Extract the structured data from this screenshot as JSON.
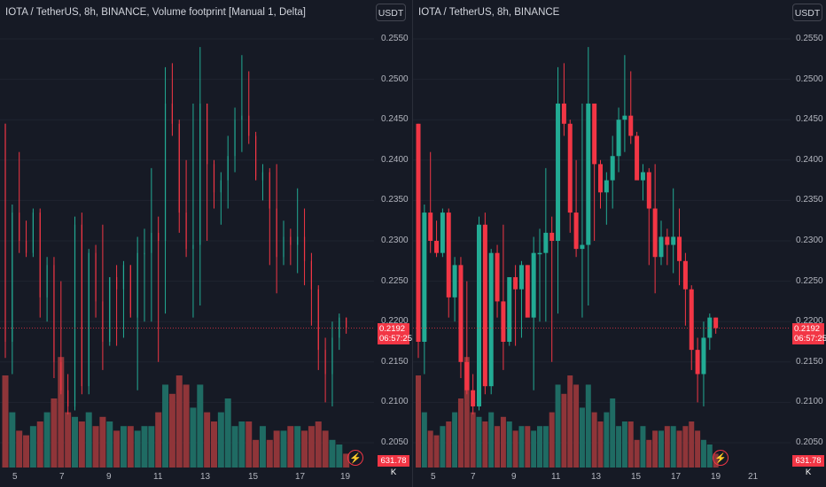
{
  "colors": {
    "background": "#161a25",
    "up": "#22ab94",
    "down": "#f23645",
    "up_volume": "#1f6b63",
    "down_volume": "#8f3539",
    "grid": "#1f2430",
    "last_price_line": "#f23645"
  },
  "left_pane": {
    "legend": "IOTA / TetherUS, 8h, BINANCE, Volume footprint [Manual 1, Delta]",
    "currency_button": "USDT",
    "last_price": "0.2192",
    "countdown": "06:57:25",
    "volume_tag": "631.78 K",
    "flash_icon": "lightning-icon"
  },
  "right_pane": {
    "legend": "IOTA / TetherUS, 8h, BINANCE",
    "currency_button": "USDT",
    "last_price": "0.2192",
    "countdown": "06:57:25",
    "volume_tag": "631.78 K",
    "flash_icon": "lightning-icon"
  },
  "price_axis": [
    "0.2550",
    "0.2500",
    "0.2450",
    "0.2400",
    "0.2350",
    "0.2300",
    "0.2250",
    "0.2200",
    "0.2150",
    "0.2100",
    "0.2050"
  ],
  "left_dates": [
    "5",
    "7",
    "9",
    "11",
    "13",
    "15",
    "17",
    "19"
  ],
  "right_dates": [
    "5",
    "7",
    "9",
    "11",
    "13",
    "15",
    "17",
    "19",
    "21"
  ],
  "chart_data": {
    "type": "candlestick",
    "symbol": "IOTA / TetherUS",
    "interval": "8h",
    "exchange": "BINANCE",
    "ylim": [
      0.2025,
      0.256
    ],
    "candles": [
      {
        "o": 0.2445,
        "h": 0.2445,
        "l": 0.2155,
        "c": 0.2175
      },
      {
        "o": 0.2175,
        "h": 0.2345,
        "l": 0.2135,
        "c": 0.2335
      },
      {
        "o": 0.2335,
        "h": 0.241,
        "l": 0.2285,
        "c": 0.23
      },
      {
        "o": 0.23,
        "h": 0.2325,
        "l": 0.228,
        "c": 0.2285
      },
      {
        "o": 0.2285,
        "h": 0.234,
        "l": 0.228,
        "c": 0.2335
      },
      {
        "o": 0.2335,
        "h": 0.234,
        "l": 0.2205,
        "c": 0.223
      },
      {
        "o": 0.223,
        "h": 0.228,
        "l": 0.22,
        "c": 0.227
      },
      {
        "o": 0.227,
        "h": 0.228,
        "l": 0.213,
        "c": 0.215
      },
      {
        "o": 0.215,
        "h": 0.225,
        "l": 0.211,
        "c": 0.2115
      },
      {
        "o": 0.2115,
        "h": 0.2135,
        "l": 0.2085,
        "c": 0.2095
      },
      {
        "o": 0.2095,
        "h": 0.233,
        "l": 0.209,
        "c": 0.232
      },
      {
        "o": 0.232,
        "h": 0.2335,
        "l": 0.211,
        "c": 0.212
      },
      {
        "o": 0.212,
        "h": 0.229,
        "l": 0.211,
        "c": 0.2285
      },
      {
        "o": 0.2285,
        "h": 0.2295,
        "l": 0.2205,
        "c": 0.2225
      },
      {
        "o": 0.2225,
        "h": 0.232,
        "l": 0.214,
        "c": 0.2175
      },
      {
        "o": 0.2175,
        "h": 0.2255,
        "l": 0.217,
        "c": 0.2255
      },
      {
        "o": 0.2255,
        "h": 0.227,
        "l": 0.217,
        "c": 0.224
      },
      {
        "o": 0.224,
        "h": 0.2275,
        "l": 0.218,
        "c": 0.227
      },
      {
        "o": 0.227,
        "h": 0.227,
        "l": 0.221,
        "c": 0.2205
      },
      {
        "o": 0.2205,
        "h": 0.2305,
        "l": 0.2115,
        "c": 0.2285
      },
      {
        "o": 0.2285,
        "h": 0.2315,
        "l": 0.22,
        "c": 0.2285
      },
      {
        "o": 0.2285,
        "h": 0.239,
        "l": 0.22,
        "c": 0.231
      },
      {
        "o": 0.231,
        "h": 0.233,
        "l": 0.215,
        "c": 0.23
      },
      {
        "o": 0.23,
        "h": 0.2515,
        "l": 0.221,
        "c": 0.247
      },
      {
        "o": 0.247,
        "h": 0.252,
        "l": 0.243,
        "c": 0.2445
      },
      {
        "o": 0.2445,
        "h": 0.245,
        "l": 0.231,
        "c": 0.2335
      },
      {
        "o": 0.2335,
        "h": 0.24,
        "l": 0.228,
        "c": 0.229
      },
      {
        "o": 0.229,
        "h": 0.247,
        "l": 0.2205,
        "c": 0.2295
      },
      {
        "o": 0.2295,
        "h": 0.254,
        "l": 0.222,
        "c": 0.247
      },
      {
        "o": 0.247,
        "h": 0.247,
        "l": 0.23,
        "c": 0.2395
      },
      {
        "o": 0.2395,
        "h": 0.24,
        "l": 0.234,
        "c": 0.236
      },
      {
        "o": 0.236,
        "h": 0.2385,
        "l": 0.232,
        "c": 0.2375
      },
      {
        "o": 0.2375,
        "h": 0.243,
        "l": 0.234,
        "c": 0.2405
      },
      {
        "o": 0.2405,
        "h": 0.2465,
        "l": 0.2385,
        "c": 0.245
      },
      {
        "o": 0.245,
        "h": 0.253,
        "l": 0.241,
        "c": 0.2455
      },
      {
        "o": 0.2455,
        "h": 0.251,
        "l": 0.242,
        "c": 0.243
      },
      {
        "o": 0.243,
        "h": 0.2435,
        "l": 0.238,
        "c": 0.2375
      },
      {
        "o": 0.2375,
        "h": 0.2395,
        "l": 0.235,
        "c": 0.2385
      },
      {
        "o": 0.2385,
        "h": 0.239,
        "l": 0.227,
        "c": 0.234
      },
      {
        "o": 0.234,
        "h": 0.2395,
        "l": 0.2235,
        "c": 0.228
      },
      {
        "o": 0.228,
        "h": 0.2325,
        "l": 0.227,
        "c": 0.2305
      },
      {
        "o": 0.2305,
        "h": 0.2315,
        "l": 0.227,
        "c": 0.2295
      },
      {
        "o": 0.2295,
        "h": 0.2365,
        "l": 0.226,
        "c": 0.2305
      },
      {
        "o": 0.2305,
        "h": 0.234,
        "l": 0.2245,
        "c": 0.2275
      },
      {
        "o": 0.2275,
        "h": 0.2285,
        "l": 0.2195,
        "c": 0.224
      },
      {
        "o": 0.224,
        "h": 0.2245,
        "l": 0.214,
        "c": 0.2165
      },
      {
        "o": 0.2165,
        "h": 0.218,
        "l": 0.21,
        "c": 0.2135
      },
      {
        "o": 0.2135,
        "h": 0.22,
        "l": 0.2095,
        "c": 0.218
      },
      {
        "o": 0.218,
        "h": 0.221,
        "l": 0.2165,
        "c": 0.2205
      },
      {
        "o": 0.2205,
        "h": 0.2205,
        "l": 0.2185,
        "c": 0.2192
      }
    ],
    "volumes": [
      0.2,
      0.12,
      0.08,
      0.07,
      0.09,
      0.1,
      0.12,
      0.15,
      0.24,
      0.12,
      0.11,
      0.1,
      0.12,
      0.09,
      0.11,
      0.1,
      0.08,
      0.09,
      0.09,
      0.08,
      0.09,
      0.09,
      0.12,
      0.18,
      0.16,
      0.2,
      0.18,
      0.13,
      0.18,
      0.12,
      0.1,
      0.12,
      0.15,
      0.09,
      0.1,
      0.1,
      0.06,
      0.09,
      0.06,
      0.08,
      0.08,
      0.09,
      0.09,
      0.08,
      0.09,
      0.1,
      0.08,
      0.06,
      0.05,
      0.03
    ],
    "volume_max": 0.25,
    "last_price": 0.2192
  }
}
